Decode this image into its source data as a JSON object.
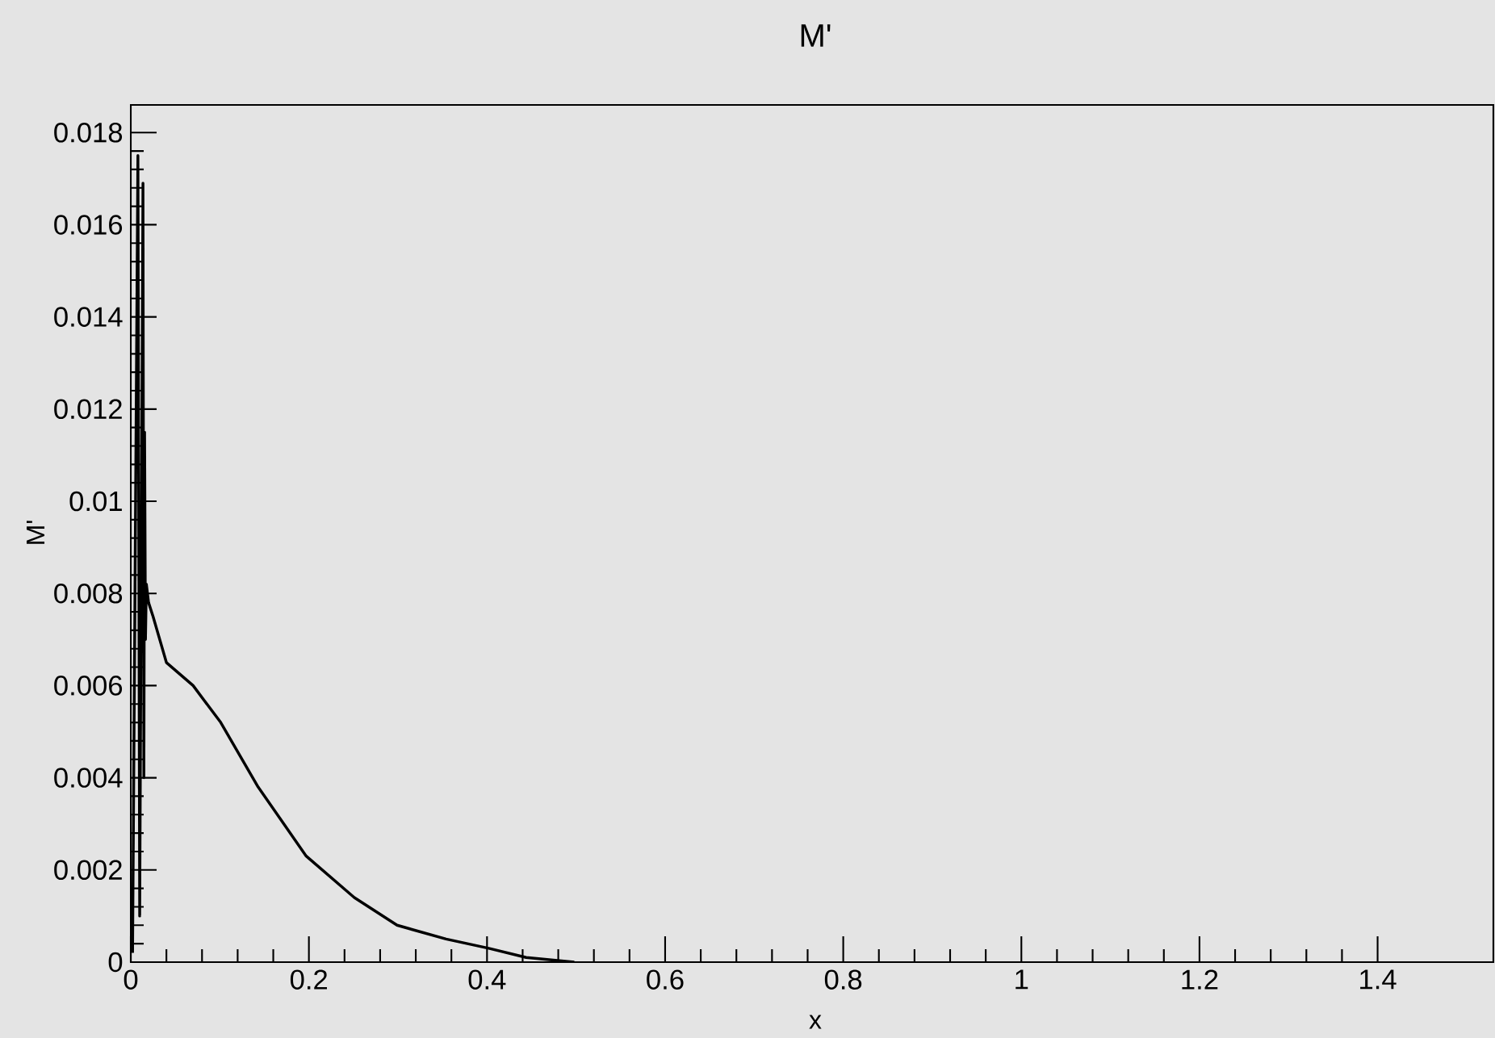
{
  "chart_data": {
    "type": "line",
    "title": "M'",
    "xlabel": "x",
    "ylabel": "M'",
    "x": [
      0.002,
      0.008,
      0.01,
      0.0137,
      0.0147,
      0.0155,
      0.0165,
      0.0175,
      0.02,
      0.025,
      0.04,
      0.07,
      0.101,
      0.143,
      0.197,
      0.251,
      0.299,
      0.354,
      0.402,
      0.444,
      0.498
    ],
    "series": [
      {
        "color": "#000000",
        "values": [
          0.0002,
          0.0175,
          0.001,
          0.0169,
          0.004,
          0.0115,
          0.007,
          0.0082,
          0.0078,
          0.0075,
          0.0065,
          0.006,
          0.0052,
          0.0038,
          0.0023,
          0.0014,
          0.0008,
          0.0005,
          0.0003,
          0.0001,
          0.0
        ]
      }
    ],
    "xlim": [
      0,
      1.53
    ],
    "ylim": [
      0,
      0.0186
    ],
    "xticks": [
      0,
      0.2,
      0.4,
      0.6,
      0.8,
      1,
      1.2,
      1.4
    ],
    "yticks": [
      0,
      0.002,
      0.004,
      0.006,
      0.008,
      0.01,
      0.012,
      0.014,
      0.016,
      0.018
    ]
  }
}
